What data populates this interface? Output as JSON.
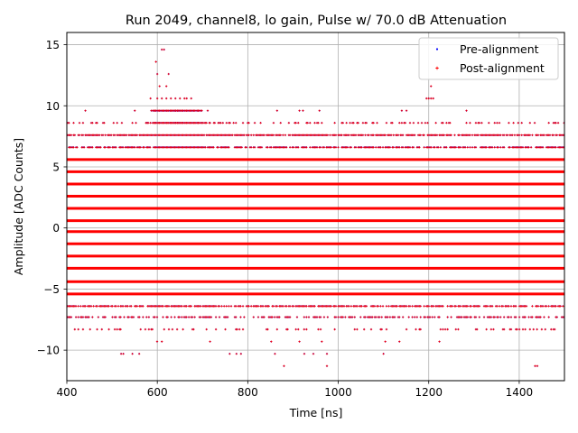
{
  "chart_data": {
    "type": "scatter",
    "title": "Run 2049, channel8, lo gain, Pulse w/ 70.0 dB Attenuation",
    "xlabel": "Time [ns]",
    "ylabel": "Amplitude [ADC Counts]",
    "xlim": [
      400,
      1500
    ],
    "ylim": [
      -12.5,
      16.0
    ],
    "xticks": [
      400,
      600,
      800,
      1000,
      1200,
      1400
    ],
    "yticks": [
      -10,
      -5,
      0,
      5,
      10,
      15
    ],
    "grid": true,
    "legend_position": "top-right",
    "legend": [
      "Pre-alignment",
      "Post-alignment"
    ],
    "quantized_levels": [
      -11.3,
      -10.3,
      -9.3,
      -8.3,
      -7.3,
      -6.4,
      -5.4,
      -4.4,
      -3.3,
      -2.3,
      -1.3,
      -0.3,
      0.6,
      1.6,
      2.6,
      3.6,
      4.6,
      5.6,
      6.6,
      7.6,
      8.6,
      9.6,
      10.6,
      11.6,
      12.6,
      13.6,
      14.6
    ],
    "dense_levels": [
      -5.4,
      -4.4,
      -3.3,
      -2.3,
      -1.3,
      -0.3,
      0.6,
      1.6,
      2.6,
      3.6,
      4.6,
      5.6
    ],
    "sparse_levels": [
      {
        "y": 7.6,
        "density": 0.8
      },
      {
        "y": 6.6,
        "density": 0.7
      },
      {
        "y": -6.4,
        "density": 0.75
      },
      {
        "y": -7.3,
        "density": 0.45
      },
      {
        "y": 8.6,
        "density": 0.22
      },
      {
        "y": -8.3,
        "density": 0.18
      },
      {
        "y": 9.6,
        "density": 0.02
      },
      {
        "y": -9.3,
        "density": 0.02
      }
    ],
    "pulse_peak": {
      "x": [
        597,
        600,
        605,
        610,
        615,
        620,
        625
      ],
      "y": [
        13.6,
        12.6,
        11.6,
        14.6,
        14.6,
        11.6,
        12.6
      ]
    },
    "pulse_levels": [
      {
        "y": 10.6,
        "x": [
          585,
          600,
          610,
          620,
          630,
          640,
          650,
          660,
          665,
          675
        ]
      },
      {
        "y": 9.6,
        "x": [
          590,
          595,
          600,
          605,
          610,
          615,
          620,
          625,
          630,
          635,
          640,
          645,
          650,
          655,
          660,
          665,
          670,
          675,
          680,
          690
        ]
      },
      {
        "y": 8.6,
        "x": [
          575,
          580,
          585,
          590,
          595,
          600,
          605,
          610,
          615,
          620,
          625,
          630,
          635,
          640,
          645,
          650,
          655,
          660,
          665,
          670,
          675,
          680,
          685,
          690,
          700,
          715,
          725,
          740,
          745
        ]
      }
    ],
    "outliers": [
      {
        "x": 880,
        "y": -11.3
      },
      {
        "x": 975,
        "y": -11.3
      },
      {
        "x": 1435,
        "y": -11.3
      },
      {
        "x": 1440,
        "y": -11.3
      },
      {
        "x": 520,
        "y": -10.3
      },
      {
        "x": 525,
        "y": -10.3
      },
      {
        "x": 545,
        "y": -10.3
      },
      {
        "x": 560,
        "y": -10.3
      },
      {
        "x": 760,
        "y": -10.3
      },
      {
        "x": 775,
        "y": -10.3
      },
      {
        "x": 785,
        "y": -10.3
      },
      {
        "x": 860,
        "y": -10.3
      },
      {
        "x": 925,
        "y": -10.3
      },
      {
        "x": 945,
        "y": -10.3
      },
      {
        "x": 975,
        "y": -10.3
      },
      {
        "x": 1100,
        "y": -10.3
      },
      {
        "x": 1205,
        "y": 11.6
      },
      {
        "x": 1205,
        "y": 10.6
      },
      {
        "x": 1200,
        "y": 10.6
      },
      {
        "x": 1195,
        "y": 10.6
      },
      {
        "x": 1210,
        "y": 10.6
      }
    ]
  }
}
